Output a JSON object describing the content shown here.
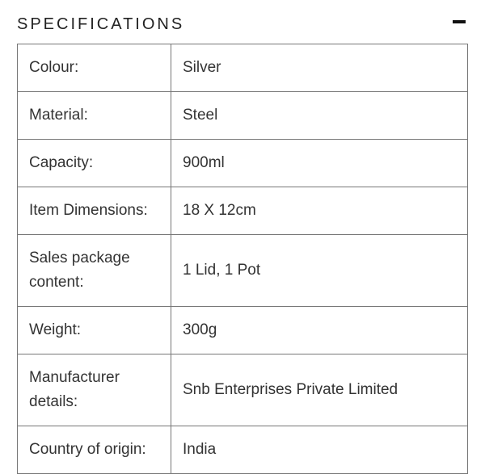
{
  "title": "SPECIFICATIONS",
  "collapse_icon": "minus-icon",
  "rows": [
    {
      "label": "Colour:",
      "value": "Silver"
    },
    {
      "label": "Material:",
      "value": "Steel"
    },
    {
      "label": "Capacity:",
      "value": "900ml"
    },
    {
      "label": "Item Dimensions:",
      "value": "18 X 12cm"
    },
    {
      "label": "Sales package content:",
      "value": "1 Lid, 1 Pot"
    },
    {
      "label": "Weight:",
      "value": "300g"
    },
    {
      "label": "Manufacturer details:",
      "value": "Snb Enterprises Private Limited"
    },
    {
      "label": "Country of origin:",
      "value": "India"
    }
  ]
}
